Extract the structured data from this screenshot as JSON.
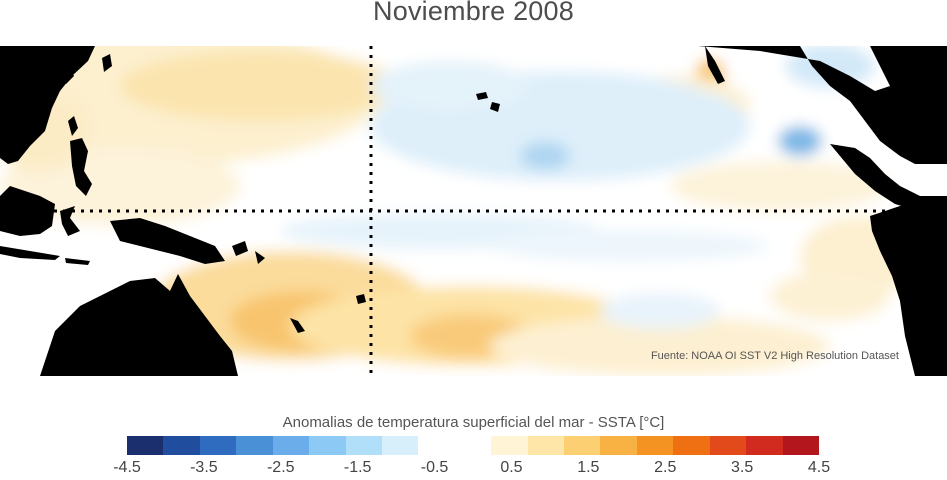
{
  "title": "Noviembre 2008",
  "source_note": "Fuente: NOAA OI SST V2 High Resolution Dataset",
  "colorbar": {
    "label_text": "Anomalias de temperatura superficial del mar - SSTA",
    "label_unit": "[°C]",
    "min": -5,
    "max": 5,
    "step": 0.5,
    "colors": [
      "#1b2f6e",
      "#214d9e",
      "#2f6cc0",
      "#4a90d6",
      "#6aadea",
      "#8cc9f4",
      "#b1def8",
      "#d7eefb",
      "#ffffff",
      "#ffffff",
      "#fff4d6",
      "#fde6a8",
      "#fbcf72",
      "#f8b244",
      "#f49322",
      "#ee7012",
      "#e24a1c",
      "#d12a1f",
      "#b3161d"
    ],
    "tick_labels": [
      "-4.5",
      "-3.5",
      "-2.5",
      "-1.5",
      "-0.5",
      "0.5",
      "1.5",
      "2.5",
      "3.5",
      "4.5"
    ],
    "tick_values": [
      -4.5,
      -3.5,
      -2.5,
      -1.5,
      -0.5,
      0.5,
      1.5,
      2.5,
      3.5,
      4.5
    ]
  },
  "map": {
    "land_color": "#000000",
    "guide_line_color": "#000000",
    "guides": [
      "equator",
      "date-line"
    ]
  }
}
